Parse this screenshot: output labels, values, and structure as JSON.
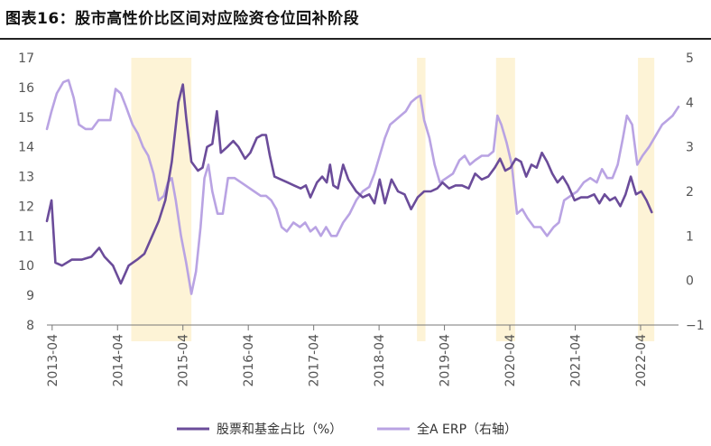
{
  "title": "图表16：股市高性价比区间对应险资仓位回补阶段",
  "colors": {
    "series1": "#6b4c9a",
    "series2": "#b9a3e3",
    "highlight": "#fdf3d6",
    "axis": "#777777",
    "text": "#555555"
  },
  "chart_data": {
    "type": "line",
    "x_range": [
      2013.17,
      2022.83
    ],
    "x_ticks": [
      {
        "label": "2013-04",
        "x": 2013.25
      },
      {
        "label": "2014-04",
        "x": 2014.25
      },
      {
        "label": "2015-04",
        "x": 2015.25
      },
      {
        "label": "2016-04",
        "x": 2016.25
      },
      {
        "label": "2017-04",
        "x": 2017.25
      },
      {
        "label": "2018-04",
        "x": 2018.25
      },
      {
        "label": "2019-04",
        "x": 2019.25
      },
      {
        "label": "2020-04",
        "x": 2020.25
      },
      {
        "label": "2021-04",
        "x": 2021.25
      },
      {
        "label": "2022-04",
        "x": 2022.25
      }
    ],
    "y_left": {
      "min": 8,
      "max": 17,
      "ticks": [
        "8",
        "9",
        "10",
        "11",
        "12",
        "13",
        "14",
        "15",
        "16",
        "17"
      ]
    },
    "y_right": {
      "min": -1,
      "max": 5,
      "ticks": [
        "−1",
        "0",
        "1",
        "2",
        "3",
        "4",
        "5"
      ]
    },
    "highlight_ranges": [
      [
        2014.46,
        2015.38
      ],
      [
        2018.83,
        2018.96
      ],
      [
        2020.04,
        2020.33
      ],
      [
        2022.21,
        2022.46
      ]
    ],
    "series": [
      {
        "name": "股票和基金占比（%）",
        "axis": "left",
        "color": "#6b4c9a",
        "points": [
          [
            2013.17,
            11.5
          ],
          [
            2013.24,
            12.2
          ],
          [
            2013.3,
            10.1
          ],
          [
            2013.4,
            10.0
          ],
          [
            2013.55,
            10.2
          ],
          [
            2013.7,
            10.2
          ],
          [
            2013.85,
            10.3
          ],
          [
            2013.97,
            10.6
          ],
          [
            2014.05,
            10.3
          ],
          [
            2014.18,
            10.0
          ],
          [
            2014.3,
            9.4
          ],
          [
            2014.42,
            10.0
          ],
          [
            2014.55,
            10.2
          ],
          [
            2014.66,
            10.4
          ],
          [
            2014.78,
            11.0
          ],
          [
            2014.88,
            11.5
          ],
          [
            2014.98,
            12.2
          ],
          [
            2015.08,
            13.5
          ],
          [
            2015.18,
            15.5
          ],
          [
            2015.25,
            16.1
          ],
          [
            2015.3,
            15.0
          ],
          [
            2015.38,
            13.5
          ],
          [
            2015.48,
            13.2
          ],
          [
            2015.55,
            13.3
          ],
          [
            2015.62,
            14.0
          ],
          [
            2015.7,
            14.1
          ],
          [
            2015.77,
            15.2
          ],
          [
            2015.83,
            13.8
          ],
          [
            2015.93,
            14.0
          ],
          [
            2016.02,
            14.2
          ],
          [
            2016.1,
            14.0
          ],
          [
            2016.2,
            13.6
          ],
          [
            2016.28,
            13.8
          ],
          [
            2016.38,
            14.3
          ],
          [
            2016.46,
            14.4
          ],
          [
            2016.52,
            14.4
          ],
          [
            2016.58,
            13.7
          ],
          [
            2016.65,
            13.0
          ],
          [
            2016.75,
            12.9
          ],
          [
            2016.85,
            12.8
          ],
          [
            2016.95,
            12.7
          ],
          [
            2017.05,
            12.6
          ],
          [
            2017.13,
            12.7
          ],
          [
            2017.2,
            12.3
          ],
          [
            2017.3,
            12.8
          ],
          [
            2017.38,
            13.0
          ],
          [
            2017.45,
            12.8
          ],
          [
            2017.5,
            13.4
          ],
          [
            2017.55,
            12.7
          ],
          [
            2017.62,
            12.6
          ],
          [
            2017.7,
            13.4
          ],
          [
            2017.78,
            12.9
          ],
          [
            2017.9,
            12.5
          ],
          [
            2018.0,
            12.3
          ],
          [
            2018.1,
            12.4
          ],
          [
            2018.18,
            12.1
          ],
          [
            2018.26,
            12.9
          ],
          [
            2018.34,
            12.1
          ],
          [
            2018.44,
            12.9
          ],
          [
            2018.54,
            12.5
          ],
          [
            2018.64,
            12.4
          ],
          [
            2018.74,
            11.9
          ],
          [
            2018.84,
            12.3
          ],
          [
            2018.94,
            12.5
          ],
          [
            2019.04,
            12.5
          ],
          [
            2019.14,
            12.6
          ],
          [
            2019.22,
            12.8
          ],
          [
            2019.32,
            12.6
          ],
          [
            2019.42,
            12.7
          ],
          [
            2019.52,
            12.7
          ],
          [
            2019.62,
            12.6
          ],
          [
            2019.72,
            13.1
          ],
          [
            2019.82,
            12.9
          ],
          [
            2019.92,
            13.0
          ],
          [
            2020.02,
            13.3
          ],
          [
            2020.1,
            13.6
          ],
          [
            2020.18,
            13.2
          ],
          [
            2020.26,
            13.3
          ],
          [
            2020.34,
            13.6
          ],
          [
            2020.42,
            13.5
          ],
          [
            2020.5,
            13.0
          ],
          [
            2020.58,
            13.4
          ],
          [
            2020.66,
            13.3
          ],
          [
            2020.74,
            13.8
          ],
          [
            2020.82,
            13.5
          ],
          [
            2020.9,
            13.1
          ],
          [
            2020.98,
            12.8
          ],
          [
            2021.06,
            13.0
          ],
          [
            2021.14,
            12.7
          ],
          [
            2021.24,
            12.2
          ],
          [
            2021.34,
            12.3
          ],
          [
            2021.44,
            12.3
          ],
          [
            2021.54,
            12.4
          ],
          [
            2021.62,
            12.1
          ],
          [
            2021.7,
            12.4
          ],
          [
            2021.78,
            12.2
          ],
          [
            2021.86,
            12.3
          ],
          [
            2021.94,
            12.0
          ],
          [
            2022.02,
            12.4
          ],
          [
            2022.1,
            13.0
          ],
          [
            2022.18,
            12.4
          ],
          [
            2022.26,
            12.5
          ],
          [
            2022.34,
            12.2
          ],
          [
            2022.42,
            11.8
          ]
        ]
      },
      {
        "name": "全A ERP（右轴）",
        "axis": "right",
        "color": "#b9a3e3",
        "points": [
          [
            2013.17,
            3.4
          ],
          [
            2013.24,
            3.8
          ],
          [
            2013.32,
            4.2
          ],
          [
            2013.42,
            4.45
          ],
          [
            2013.5,
            4.5
          ],
          [
            2013.58,
            4.1
          ],
          [
            2013.66,
            3.5
          ],
          [
            2013.76,
            3.4
          ],
          [
            2013.86,
            3.4
          ],
          [
            2013.96,
            3.6
          ],
          [
            2014.06,
            3.6
          ],
          [
            2014.14,
            3.6
          ],
          [
            2014.22,
            4.3
          ],
          [
            2014.3,
            4.2
          ],
          [
            2014.38,
            3.9
          ],
          [
            2014.48,
            3.5
          ],
          [
            2014.56,
            3.3
          ],
          [
            2014.64,
            3.0
          ],
          [
            2014.72,
            2.8
          ],
          [
            2014.8,
            2.4
          ],
          [
            2014.88,
            1.8
          ],
          [
            2014.96,
            1.9
          ],
          [
            2015.02,
            2.2
          ],
          [
            2015.08,
            2.3
          ],
          [
            2015.14,
            1.8
          ],
          [
            2015.22,
            1.0
          ],
          [
            2015.3,
            0.4
          ],
          [
            2015.38,
            -0.3
          ],
          [
            2015.45,
            0.2
          ],
          [
            2015.52,
            1.2
          ],
          [
            2015.58,
            2.3
          ],
          [
            2015.64,
            2.6
          ],
          [
            2015.7,
            2.0
          ],
          [
            2015.78,
            1.5
          ],
          [
            2015.86,
            1.5
          ],
          [
            2015.94,
            2.3
          ],
          [
            2016.04,
            2.3
          ],
          [
            2016.14,
            2.2
          ],
          [
            2016.24,
            2.1
          ],
          [
            2016.34,
            2.0
          ],
          [
            2016.44,
            1.9
          ],
          [
            2016.52,
            1.9
          ],
          [
            2016.6,
            1.8
          ],
          [
            2016.68,
            1.6
          ],
          [
            2016.76,
            1.2
          ],
          [
            2016.84,
            1.1
          ],
          [
            2016.94,
            1.3
          ],
          [
            2017.04,
            1.2
          ],
          [
            2017.12,
            1.3
          ],
          [
            2017.2,
            1.1
          ],
          [
            2017.28,
            1.2
          ],
          [
            2017.36,
            1.0
          ],
          [
            2017.44,
            1.2
          ],
          [
            2017.52,
            1.0
          ],
          [
            2017.6,
            1.0
          ],
          [
            2017.7,
            1.3
          ],
          [
            2017.8,
            1.5
          ],
          [
            2017.9,
            1.8
          ],
          [
            2018.0,
            2.0
          ],
          [
            2018.1,
            2.1
          ],
          [
            2018.18,
            2.4
          ],
          [
            2018.26,
            2.8
          ],
          [
            2018.34,
            3.2
          ],
          [
            2018.42,
            3.5
          ],
          [
            2018.5,
            3.6
          ],
          [
            2018.58,
            3.7
          ],
          [
            2018.66,
            3.8
          ],
          [
            2018.74,
            4.0
          ],
          [
            2018.82,
            4.1
          ],
          [
            2018.88,
            4.15
          ],
          [
            2018.94,
            3.6
          ],
          [
            2019.02,
            3.2
          ],
          [
            2019.1,
            2.6
          ],
          [
            2019.18,
            2.2
          ],
          [
            2019.28,
            2.3
          ],
          [
            2019.38,
            2.4
          ],
          [
            2019.48,
            2.7
          ],
          [
            2019.56,
            2.8
          ],
          [
            2019.64,
            2.6
          ],
          [
            2019.72,
            2.7
          ],
          [
            2019.82,
            2.8
          ],
          [
            2019.92,
            2.8
          ],
          [
            2020.0,
            2.9
          ],
          [
            2020.06,
            3.7
          ],
          [
            2020.12,
            3.5
          ],
          [
            2020.2,
            3.1
          ],
          [
            2020.28,
            2.6
          ],
          [
            2020.36,
            1.5
          ],
          [
            2020.44,
            1.6
          ],
          [
            2020.52,
            1.4
          ],
          [
            2020.62,
            1.2
          ],
          [
            2020.72,
            1.2
          ],
          [
            2020.82,
            1.0
          ],
          [
            2020.92,
            1.2
          ],
          [
            2021.0,
            1.3
          ],
          [
            2021.08,
            1.8
          ],
          [
            2021.18,
            1.9
          ],
          [
            2021.28,
            2.0
          ],
          [
            2021.38,
            2.2
          ],
          [
            2021.48,
            2.3
          ],
          [
            2021.58,
            2.2
          ],
          [
            2021.66,
            2.5
          ],
          [
            2021.74,
            2.3
          ],
          [
            2021.82,
            2.3
          ],
          [
            2021.9,
            2.6
          ],
          [
            2021.98,
            3.2
          ],
          [
            2022.04,
            3.7
          ],
          [
            2022.12,
            3.5
          ],
          [
            2022.2,
            2.6
          ],
          [
            2022.28,
            2.8
          ],
          [
            2022.38,
            3.0
          ],
          [
            2022.5,
            3.3
          ],
          [
            2022.58,
            3.5
          ],
          [
            2022.66,
            3.6
          ],
          [
            2022.74,
            3.7
          ],
          [
            2022.83,
            3.9
          ]
        ]
      }
    ],
    "legend": {
      "position": "bottom-center"
    },
    "grid": false
  }
}
